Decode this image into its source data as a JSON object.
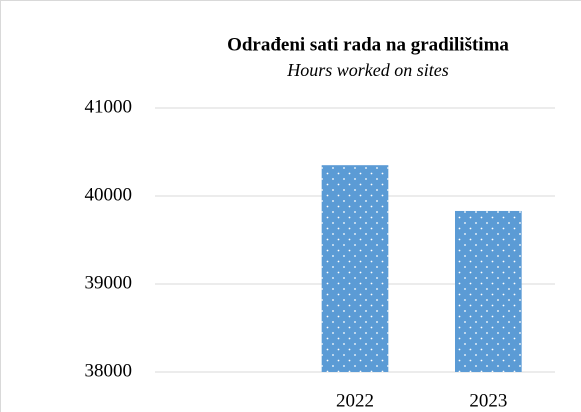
{
  "chart_data": {
    "type": "bar",
    "title": "Odrađeni sati rada na gradilištima",
    "subtitle": "Hours worked on sites",
    "categories": [
      null,
      "2022",
      "2023"
    ],
    "values": [
      null,
      40350,
      39830
    ],
    "color": "#5b9bd5",
    "ylim": [
      38000,
      41000
    ],
    "yticks": [
      38000,
      39000,
      40000,
      41000
    ],
    "grid": true
  }
}
